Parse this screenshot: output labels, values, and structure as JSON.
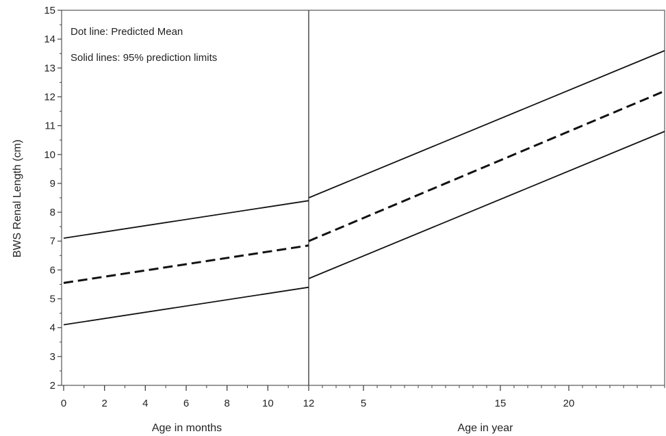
{
  "chart_data": {
    "type": "line",
    "ylabel": "BWS Renal Length (cm)",
    "ylim": [
      2,
      15
    ],
    "y_ticks": [
      2,
      3,
      4,
      5,
      6,
      7,
      8,
      9,
      10,
      11,
      12,
      13,
      14,
      15
    ],
    "grid": false,
    "legend_placement": "top-left",
    "annotations": [
      "Dot line: Predicted Mean",
      "Solid lines: 95% prediction limits"
    ],
    "panels": [
      {
        "xlabel": "Age in months",
        "xlim": [
          0,
          12
        ],
        "x_ticks": [
          0,
          2,
          4,
          6,
          8,
          10,
          12
        ],
        "series": [
          {
            "style": "solid",
            "x": [
              0,
              12
            ],
            "y": [
              7.1,
              8.4
            ]
          },
          {
            "style": "dashed",
            "x": [
              0,
              12
            ],
            "y": [
              5.55,
              6.85
            ]
          },
          {
            "style": "solid",
            "x": [
              0,
              12
            ],
            "y": [
              4.1,
              5.4
            ]
          }
        ]
      },
      {
        "xlabel": "Age in year",
        "xlim": [
          1,
          27
        ],
        "x_ticks": [
          5,
          15,
          20
        ],
        "series": [
          {
            "style": "solid",
            "x": [
              1,
              27
            ],
            "y": [
              8.5,
              13.6
            ]
          },
          {
            "style": "dashed",
            "x": [
              1,
              27
            ],
            "y": [
              7.0,
              12.2
            ]
          },
          {
            "style": "solid",
            "x": [
              1,
              27
            ],
            "y": [
              5.7,
              10.8
            ]
          }
        ]
      }
    ]
  }
}
